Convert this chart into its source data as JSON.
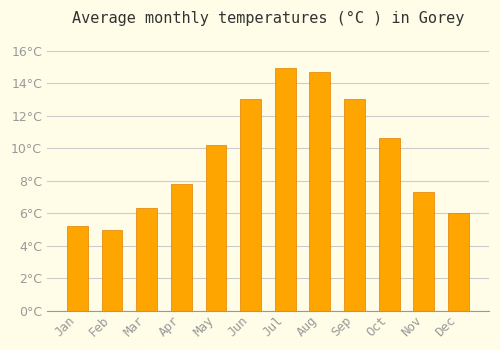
{
  "title": "Average monthly temperatures (°C ) in Gorey",
  "months": [
    "Jan",
    "Feb",
    "Mar",
    "Apr",
    "May",
    "Jun",
    "Jul",
    "Aug",
    "Sep",
    "Oct",
    "Nov",
    "Dec"
  ],
  "values": [
    5.2,
    5.0,
    6.3,
    7.8,
    10.2,
    13.0,
    14.9,
    14.7,
    13.0,
    10.6,
    7.3,
    6.0
  ],
  "bar_color": "#FFA500",
  "bar_edge_color": "#E08000",
  "background_color": "#FFFDE7",
  "grid_color": "#CCCCCC",
  "ylim": [
    0,
    17
  ],
  "yticks": [
    0,
    2,
    4,
    6,
    8,
    10,
    12,
    14,
    16
  ],
  "title_fontsize": 11,
  "tick_fontsize": 9,
  "tick_color": "#999999",
  "label_color": "#999999"
}
